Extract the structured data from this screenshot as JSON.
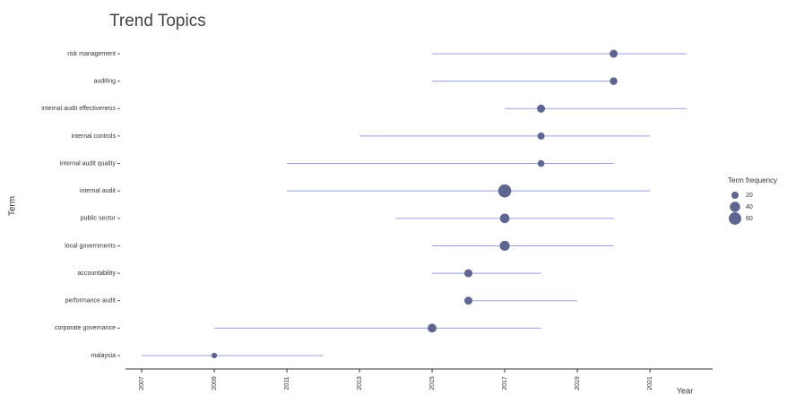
{
  "chart_data": {
    "type": "dumbbell",
    "title": "Trend Topics",
    "y_label": "Term",
    "x_label": "Year",
    "categories": [
      "risk management",
      "auditing",
      "internal audit effectiveness",
      "internal controls",
      "internal audit quality",
      "internal audit",
      "public sector",
      "local governments",
      "accountability",
      "performance audit",
      "corporate governance",
      "malaysia"
    ],
    "q1": [
      2015,
      2015,
      2017,
      2013,
      2011,
      2011,
      2014,
      2015,
      2015,
      2016,
      2009,
      2007
    ],
    "median": [
      2020,
      2020,
      2018,
      2018,
      2018,
      2017,
      2017,
      2017,
      2016,
      2016,
      2015,
      2009
    ],
    "q3": [
      2022,
      2020,
      2022,
      2021,
      2020,
      2021,
      2020,
      2020,
      2018,
      2019,
      2018,
      2012
    ],
    "frequency": [
      25,
      22,
      25,
      20,
      18,
      65,
      35,
      38,
      25,
      25,
      30,
      12
    ],
    "xlim": [
      2006.9,
      2022.8
    ],
    "xticks": [
      2007,
      2009,
      2011,
      2013,
      2015,
      2017,
      2019,
      2021
    ],
    "legend_title": "Term frequency",
    "size_legend": [
      20,
      40,
      60
    ],
    "point_color": "#5d6590",
    "line_color": "#97a0dc"
  }
}
